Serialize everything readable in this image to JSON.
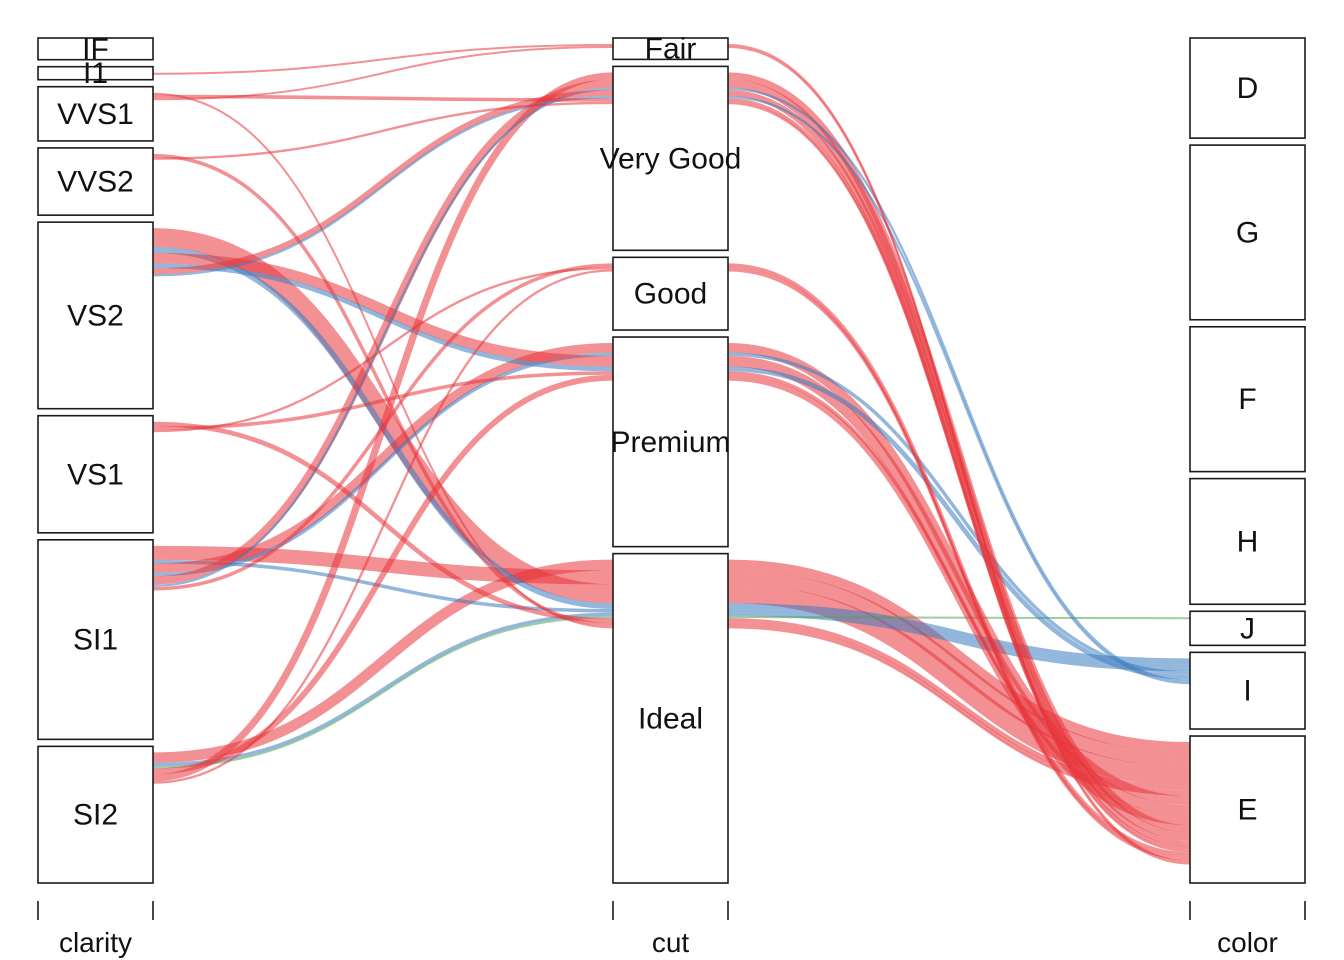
{
  "chart_data": {
    "type": "alluvial",
    "axes": [
      {
        "name": "clarity",
        "levels": [
          {
            "label": "IF",
            "count": 1
          },
          {
            "label": "I1",
            "count": 0.6
          },
          {
            "label": "VVS1",
            "count": 2.5
          },
          {
            "label": "VVS2",
            "count": 3.1
          },
          {
            "label": "VS2",
            "count": 8.6
          },
          {
            "label": "VS1",
            "count": 5.4
          },
          {
            "label": "SI1",
            "count": 9.2
          },
          {
            "label": "SI2",
            "count": 6.3
          }
        ]
      },
      {
        "name": "cut",
        "levels": [
          {
            "label": "Fair",
            "count": 1
          },
          {
            "label": "Very Good",
            "count": 8.6
          },
          {
            "label": "Good",
            "count": 3.4
          },
          {
            "label": "Premium",
            "count": 9.8
          },
          {
            "label": "Ideal",
            "count": 15.4
          }
        ]
      },
      {
        "name": "color",
        "levels": [
          {
            "label": "D",
            "count": 4.7
          },
          {
            "label": "G",
            "count": 8.2
          },
          {
            "label": "F",
            "count": 6.8
          },
          {
            "label": "H",
            "count": 5.9
          },
          {
            "label": "J",
            "count": 1.6
          },
          {
            "label": "I",
            "count": 3.6
          },
          {
            "label": "E",
            "count": 6.9
          }
        ]
      }
    ],
    "flow_colors": {
      "E": "#e8353b",
      "I": "#3a7bbf",
      "J": "#4ea24a"
    },
    "flows": [
      {
        "clarity": "SI2",
        "cut": "Ideal",
        "color": "E",
        "count": 0.9
      },
      {
        "clarity": "SI1",
        "cut": "Ideal",
        "color": "E",
        "count": 1.2
      },
      {
        "clarity": "VS2",
        "cut": "Ideal",
        "color": "E",
        "count": 1.6
      },
      {
        "clarity": "VS2",
        "cut": "Ideal",
        "color": "I",
        "count": 0.5
      },
      {
        "clarity": "SI1",
        "cut": "Ideal",
        "color": "I",
        "count": 0.3
      },
      {
        "clarity": "SI2",
        "cut": "Ideal",
        "color": "I",
        "count": 0.3
      },
      {
        "clarity": "SI2",
        "cut": "Ideal",
        "color": "J",
        "count": 0.1
      },
      {
        "clarity": "VS1",
        "cut": "Ideal",
        "color": "E",
        "count": 0.4
      },
      {
        "clarity": "VVS2",
        "cut": "Ideal",
        "color": "E",
        "count": 0.3
      },
      {
        "clarity": "VVS1",
        "cut": "Ideal",
        "color": "E",
        "count": 0.15
      },
      {
        "clarity": "SI1",
        "cut": "Premium",
        "color": "E",
        "count": 0.8
      },
      {
        "clarity": "SI1",
        "cut": "Premium",
        "color": "I",
        "count": 0.3
      },
      {
        "clarity": "VS2",
        "cut": "Premium",
        "color": "E",
        "count": 0.9
      },
      {
        "clarity": "VS2",
        "cut": "Premium",
        "color": "I",
        "count": 0.4
      },
      {
        "clarity": "VS1",
        "cut": "Premium",
        "color": "E",
        "count": 0.3
      },
      {
        "clarity": "SI2",
        "cut": "Premium",
        "color": "E",
        "count": 0.5
      },
      {
        "clarity": "SI2",
        "cut": "Very Good",
        "color": "E",
        "count": 0.6
      },
      {
        "clarity": "SI1",
        "cut": "Very Good",
        "color": "E",
        "count": 0.7
      },
      {
        "clarity": "SI1",
        "cut": "Very Good",
        "color": "I",
        "count": 0.2
      },
      {
        "clarity": "VS2",
        "cut": "Very Good",
        "color": "E",
        "count": 0.5
      },
      {
        "clarity": "VS2",
        "cut": "Very Good",
        "color": "I",
        "count": 0.2
      },
      {
        "clarity": "VVS1",
        "cut": "Very Good",
        "color": "E",
        "count": 0.3
      },
      {
        "clarity": "VVS2",
        "cut": "Very Good",
        "color": "E",
        "count": 0.2
      },
      {
        "clarity": "SI1",
        "cut": "Good",
        "color": "E",
        "count": 0.3
      },
      {
        "clarity": "VS1",
        "cut": "Good",
        "color": "E",
        "count": 0.2
      },
      {
        "clarity": "SI2",
        "cut": "Good",
        "color": "E",
        "count": 0.2
      },
      {
        "clarity": "I1",
        "cut": "Fair",
        "color": "E",
        "count": 0.1
      },
      {
        "clarity": "VVS1",
        "cut": "Fair",
        "color": "E",
        "count": 0.05
      }
    ],
    "title": "",
    "xlabel": "",
    "ylabel": "",
    "grid": false,
    "legend": false
  }
}
